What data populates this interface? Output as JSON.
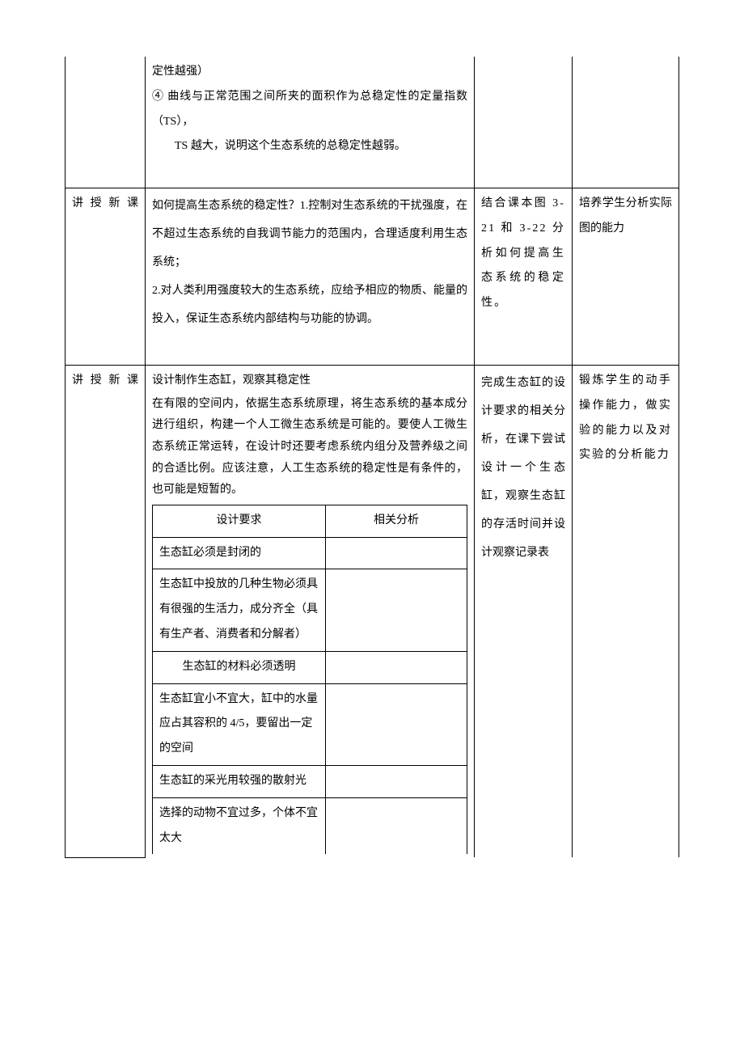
{
  "row1": {
    "col2": {
      "line1": "定性越强）",
      "line2": "④ 曲线与正常范围之间所夹的面积作为总稳定性的定量指数（TS），",
      "line3": "TS 越大，说明这个生态系统的总稳定性越弱。"
    }
  },
  "row2": {
    "col1": "讲授新课",
    "col2": "如何提高生态系统的稳定性？1.控制对生态系统的干扰强度，在不超过生态系统的自我调节能力的范围内，合理适度利用生态系统；\n2.对人类利用强度较大的生态系统，应给予相应的物质、能量的投入，保证生态系统内部结构与功能的协调。",
    "col3": "结合课本图 3-21 和 3-22 分析如何提高生态系统的稳定性。",
    "col4": "培养学生分析实际图的能力"
  },
  "row3": {
    "col1": "讲授新课",
    "col2_intro_title": "设计制作生态缸，观察其稳定性",
    "col2_intro_body": "在有限的空间内，依据生态系统原理，将生态系统的基本成分进行组织，构建一个人工微生态系统是可能的。要使人工微生态系统正常运转，在设计时还要考虑系统内组分及营养级之间的合适比例。应该注意，人工生态系统的稳定性是有条件的，也可能是短暂的。",
    "col3": "完成生态缸的设计要求的相关分析，在课下尝试设计一个生态缸，观察生态缸的存活时间并设计观察记录表",
    "col4": "锻炼学生的动手操作能力，做实验的能力以及对实验的分析能力"
  },
  "inner_table": {
    "header_req": "设计要求",
    "header_ana": "相关分析",
    "rows": [
      "生态缸必须是封闭的",
      "生态缸中投放的几种生物必须具有很强的生活力，成分齐全（具有生产者、消费者和分解者）",
      "生态缸的材料必须透明",
      "生态缸宜小不宜大，缸中的水量应占其容积的 4/5，要留出一定的空间",
      "生态缸的采光用较强的散射光",
      "选择的动物不宜过多，个体不宜太大"
    ]
  }
}
